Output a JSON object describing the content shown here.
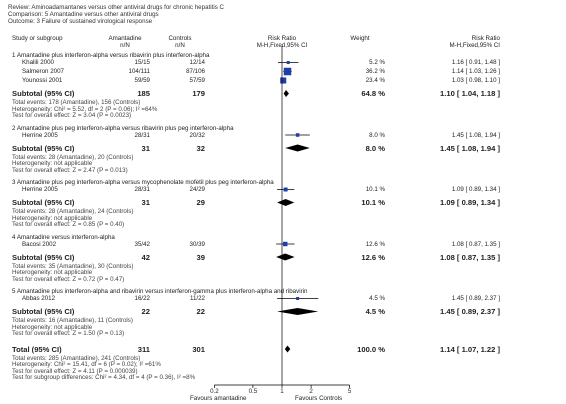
{
  "header": {
    "review": "Review:  Aminoadamantanes versus other antiviral drugs for chronic hepatitis C",
    "comparison": "Comparison:  5 Amantadine versus other antiviral drugs",
    "outcome": "Outcome:  3 Failure of sustained virological response"
  },
  "columns": {
    "study": "Study or subgroup",
    "amantadine": "Amantadine",
    "amantadine_unit": "n/N",
    "controls": "Controls",
    "controls_unit": "n/N",
    "rr": "Risk Ratio",
    "rr_method": "M-H,Fixed,95% CI",
    "weight": "Weight",
    "rr2": "Risk Ratio",
    "rr2_method": "M-H,Fixed,95% CI"
  },
  "axis": {
    "ticks": [
      "0.2",
      "0.5",
      "1",
      "2",
      "5"
    ],
    "left_label": "Favours amantadine",
    "right_label": "Favours Controls"
  },
  "chart_data": {
    "type": "forest",
    "scale": "log",
    "xlim": [
      0.2,
      5
    ],
    "reference_line": 1,
    "groups": [
      {
        "title": "1 Amantadine plus interferon-alpha versus ribavirin plus interferon-alpha",
        "studies": [
          {
            "name": "Khalili 2000",
            "aman": "15/15",
            "ctrl": "12/14",
            "weight": "5.2 %",
            "rr": 1.16,
            "lo": 0.91,
            "hi": 1.48,
            "ci_text": "1.16 [ 0.91, 1.48 ]"
          },
          {
            "name": "Salmeron 2007",
            "aman": "104/111",
            "ctrl": "87/106",
            "weight": "36.2 %",
            "rr": 1.14,
            "lo": 1.03,
            "hi": 1.26,
            "ci_text": "1.14 [ 1.03, 1.26 ]"
          },
          {
            "name": "Younossi 2001",
            "aman": "59/59",
            "ctrl": "57/59",
            "weight": "23.4 %",
            "rr": 1.03,
            "lo": 0.98,
            "hi": 1.1,
            "ci_text": "1.03 [ 0.98, 1.10 ]"
          }
        ],
        "subtotal": {
          "label": "Subtotal (95% CI)",
          "aman": "185",
          "ctrl": "179",
          "weight": "64.8 %",
          "rr": 1.1,
          "lo": 1.04,
          "hi": 1.18,
          "ci_text": "1.10 [ 1.04, 1.18 ]"
        },
        "notes": [
          "Total events: 178 (Amantadine), 156 (Controls)",
          "Heterogeneity: Chi² = 5.52, df = 2 (P = 0.06); I² =64%",
          "Test for overall effect: Z = 3.04 (P = 0.0023)"
        ]
      },
      {
        "title": "2 Amantadine plus peg interferon-alpha versus ribavirin plus peg interferon-alpha",
        "studies": [
          {
            "name": "Herrine 2005",
            "aman": "28/31",
            "ctrl": "20/32",
            "weight": "8.0 %",
            "rr": 1.45,
            "lo": 1.08,
            "hi": 1.94,
            "ci_text": "1.45 [ 1.08, 1.94 ]"
          }
        ],
        "subtotal": {
          "label": "Subtotal (95% CI)",
          "aman": "31",
          "ctrl": "32",
          "weight": "8.0 %",
          "rr": 1.45,
          "lo": 1.08,
          "hi": 1.94,
          "ci_text": "1.45 [ 1.08, 1.94 ]"
        },
        "notes": [
          "Total events: 28 (Amantadine), 20 (Controls)",
          "Heterogeneity: not applicable",
          "Test for overall effect: Z = 2.47 (P = 0.013)"
        ]
      },
      {
        "title": "3 Amantadine plus peg interferon-alpha versus mycophenolate mofetil plus peg interferon-alpha",
        "studies": [
          {
            "name": "Herrine 2005",
            "aman": "28/31",
            "ctrl": "24/29",
            "weight": "10.1 %",
            "rr": 1.09,
            "lo": 0.89,
            "hi": 1.34,
            "ci_text": "1.09 [ 0.89, 1.34 ]"
          }
        ],
        "subtotal": {
          "label": "Subtotal (95% CI)",
          "aman": "31",
          "ctrl": "29",
          "weight": "10.1 %",
          "rr": 1.09,
          "lo": 0.89,
          "hi": 1.34,
          "ci_text": "1.09 [ 0.89, 1.34 ]"
        },
        "notes": [
          "Total events: 28 (Amantadine), 24 (Controls)",
          "Heterogeneity: not applicable",
          "Test for overall effect: Z = 0.85 (P = 0.40)"
        ]
      },
      {
        "title": "4 Amantadine versus interferon-alpha",
        "studies": [
          {
            "name": "Bacosi 2002",
            "aman": "35/42",
            "ctrl": "30/39",
            "weight": "12.6 %",
            "rr": 1.08,
            "lo": 0.87,
            "hi": 1.35,
            "ci_text": "1.08 [ 0.87, 1.35 ]"
          }
        ],
        "subtotal": {
          "label": "Subtotal (95% CI)",
          "aman": "42",
          "ctrl": "39",
          "weight": "12.6 %",
          "rr": 1.08,
          "lo": 0.87,
          "hi": 1.35,
          "ci_text": "1.08 [ 0.87, 1.35 ]"
        },
        "notes": [
          "Total events: 35 (Amantadine), 30 (Controls)",
          "Heterogeneity: not applicable",
          "Test for overall effect: Z = 0.72 (P = 0.47)"
        ]
      },
      {
        "title": "5 Amantadine plus interferon-alpha and ribavirin versus interferon-gamma plus interferon-alpha and ribavirin",
        "studies": [
          {
            "name": "Abbas 2012",
            "aman": "16/22",
            "ctrl": "11/22",
            "weight": "4.5 %",
            "rr": 1.45,
            "lo": 0.89,
            "hi": 2.37,
            "ci_text": "1.45 [ 0.89, 2.37 ]"
          }
        ],
        "subtotal": {
          "label": "Subtotal (95% CI)",
          "aman": "22",
          "ctrl": "22",
          "weight": "4.5 %",
          "rr": 1.45,
          "lo": 0.89,
          "hi": 2.37,
          "ci_text": "1.45 [ 0.89, 2.37 ]"
        },
        "notes": [
          "Total events: 16 (Amantadine), 11 (Controls)",
          "Heterogeneity: not applicable",
          "Test for overall effect: Z = 1.50 (P = 0.13)"
        ]
      }
    ],
    "total": {
      "label": "Total (95% CI)",
      "aman": "311",
      "ctrl": "301",
      "weight": "100.0 %",
      "rr": 1.14,
      "lo": 1.07,
      "hi": 1.22,
      "ci_text": "1.14 [ 1.07, 1.22 ]",
      "notes": [
        "Total events: 285 (Amantadine), 241 (Controls)",
        "Heterogeneity: Chi² = 15.41, df = 6 (P = 0.02); I² =61%",
        "Test for overall effect: Z = 4.11 (P = 0.000039)",
        "Test for subgroup differences: Chi² = 4.34, df = 4 (P = 0.36), I² =8%"
      ]
    }
  }
}
